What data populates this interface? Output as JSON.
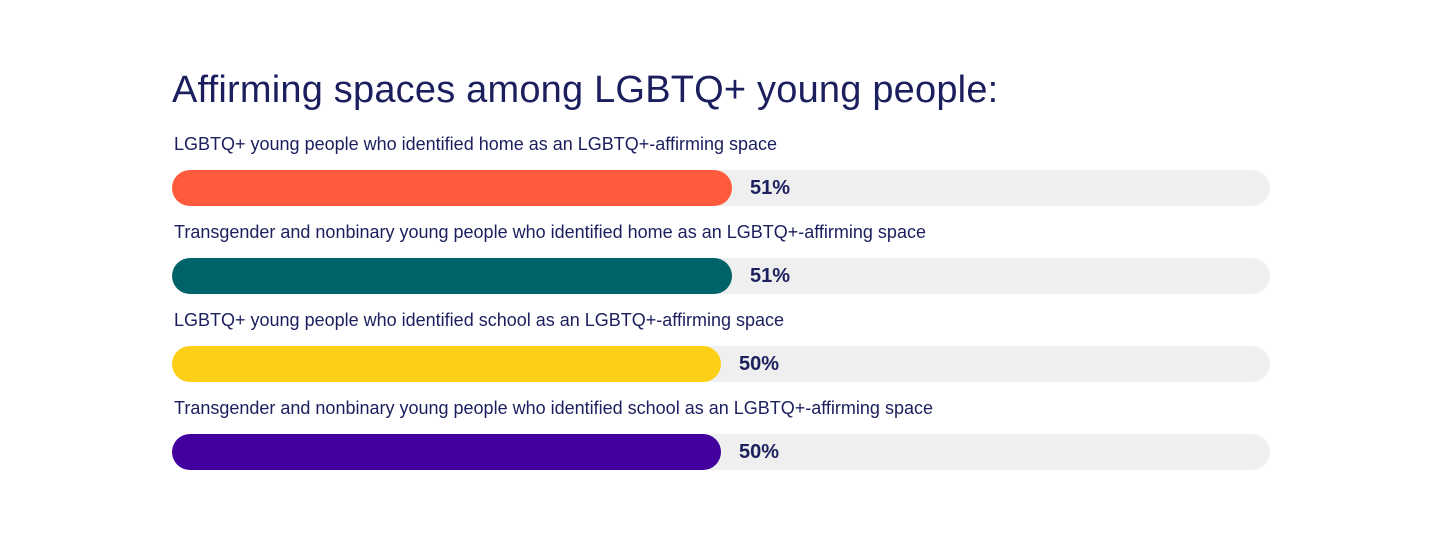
{
  "chart_data": {
    "type": "bar",
    "orientation": "horizontal",
    "title": "Affirming spaces among LGBTQ+ young people:",
    "xlim": [
      0,
      100
    ],
    "grid": false,
    "categories": [
      "LGBTQ+ young people who identified home as an LGBTQ+-affirming space",
      "Transgender and nonbinary young people who identified home as an LGBTQ+-affirming space",
      "LGBTQ+ young people who identified school as an LGBTQ+-affirming space",
      "Transgender and nonbinary young people who identified school as an LGBTQ+-affirming space"
    ],
    "values": [
      51,
      51,
      50,
      50
    ],
    "value_labels": [
      "51%",
      "51%",
      "50%",
      "50%"
    ],
    "colors": [
      "#ff5a3c",
      "#00636a",
      "#fdd017",
      "#44009e"
    ],
    "track_color": "#efefef"
  }
}
